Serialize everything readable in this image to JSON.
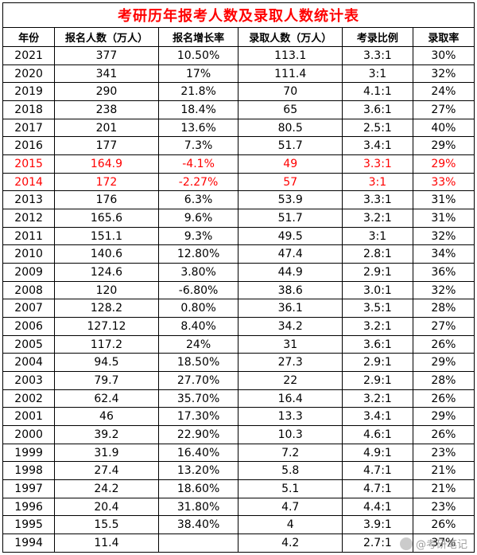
{
  "title_color": "#ff0000",
  "highlight_color": "#ff0000",
  "chart_data": {
    "type": "table",
    "title": "考研历年报考人数及录取人数统计表",
    "columns": [
      "年份",
      "报名人数（万人）",
      "报名增长率",
      "录取人数（万人）",
      "考录比例",
      "录取率"
    ],
    "rows": [
      [
        "2021",
        "377",
        "10.50%",
        "113.1",
        "3.3:1",
        "30%"
      ],
      [
        "2020",
        "341",
        "17%",
        "111.4",
        "3:1",
        "32%"
      ],
      [
        "2019",
        "290",
        "21.8%",
        "70",
        "4.1:1",
        "24%"
      ],
      [
        "2018",
        "238",
        "18.4%",
        "65",
        "3.6:1",
        "27%"
      ],
      [
        "2017",
        "201",
        "13.6%",
        "80.5",
        "2.5:1",
        "40%"
      ],
      [
        "2016",
        "177",
        "7.3%",
        "51.7",
        "3.4:1",
        "29%"
      ],
      [
        "2015",
        "164.9",
        "-4.1%",
        "49",
        "3.3:1",
        "29%"
      ],
      [
        "2014",
        "172",
        "-2.27%",
        "57",
        "3:1",
        "33%"
      ],
      [
        "2013",
        "176",
        "6.3%",
        "53.9",
        "3.3:1",
        "31%"
      ],
      [
        "2012",
        "165.6",
        "9.6%",
        "51.7",
        "3.2:1",
        "31%"
      ],
      [
        "2011",
        "151.1",
        "9.3%",
        "49.5",
        "3:1",
        "32%"
      ],
      [
        "2010",
        "140.6",
        "12.80%",
        "47.4",
        "2.8:1",
        "34%"
      ],
      [
        "2009",
        "124.6",
        "3.80%",
        "44.9",
        "2.9:1",
        "36%"
      ],
      [
        "2008",
        "120",
        "-6.80%",
        "38.6",
        "3.0:1",
        "32%"
      ],
      [
        "2007",
        "128.2",
        "0.80%",
        "36.1",
        "3.5:1",
        "28%"
      ],
      [
        "2006",
        "127.12",
        "8.40%",
        "34.2",
        "3.2:1",
        "27%"
      ],
      [
        "2005",
        "117.2",
        "24%",
        "31",
        "3.6:1",
        "26%"
      ],
      [
        "2004",
        "94.5",
        "18.50%",
        "27.3",
        "2.9:1",
        "29%"
      ],
      [
        "2003",
        "79.7",
        "27.70%",
        "22",
        "2.9:1",
        "28%"
      ],
      [
        "2002",
        "62.4",
        "35.70%",
        "16.4",
        "3.2:1",
        "26%"
      ],
      [
        "2001",
        "46",
        "17.30%",
        "13.3",
        "3.4:1",
        "29%"
      ],
      [
        "2000",
        "39.2",
        "22.90%",
        "10.3",
        "4.6:1",
        "26%"
      ],
      [
        "1999",
        "31.9",
        "16.40%",
        "7.2",
        "4.9:1",
        "23%"
      ],
      [
        "1998",
        "27.4",
        "13.20%",
        "5.8",
        "4.7:1",
        "21%"
      ],
      [
        "1997",
        "24.2",
        "18.60%",
        "5.1",
        "4.7:1",
        "21%"
      ],
      [
        "1996",
        "20.4",
        "31.80%",
        "4.7",
        "4.4:1",
        "23%"
      ],
      [
        "1995",
        "15.5",
        "38.40%",
        "4",
        "3.9:1",
        "26%"
      ],
      [
        "1994",
        "11.4",
        "",
        "4.2",
        "2.7:1",
        "37%"
      ]
    ],
    "highlight_rows": [
      "2015",
      "2014"
    ]
  },
  "watermark": {
    "text": "@考研笔记"
  }
}
